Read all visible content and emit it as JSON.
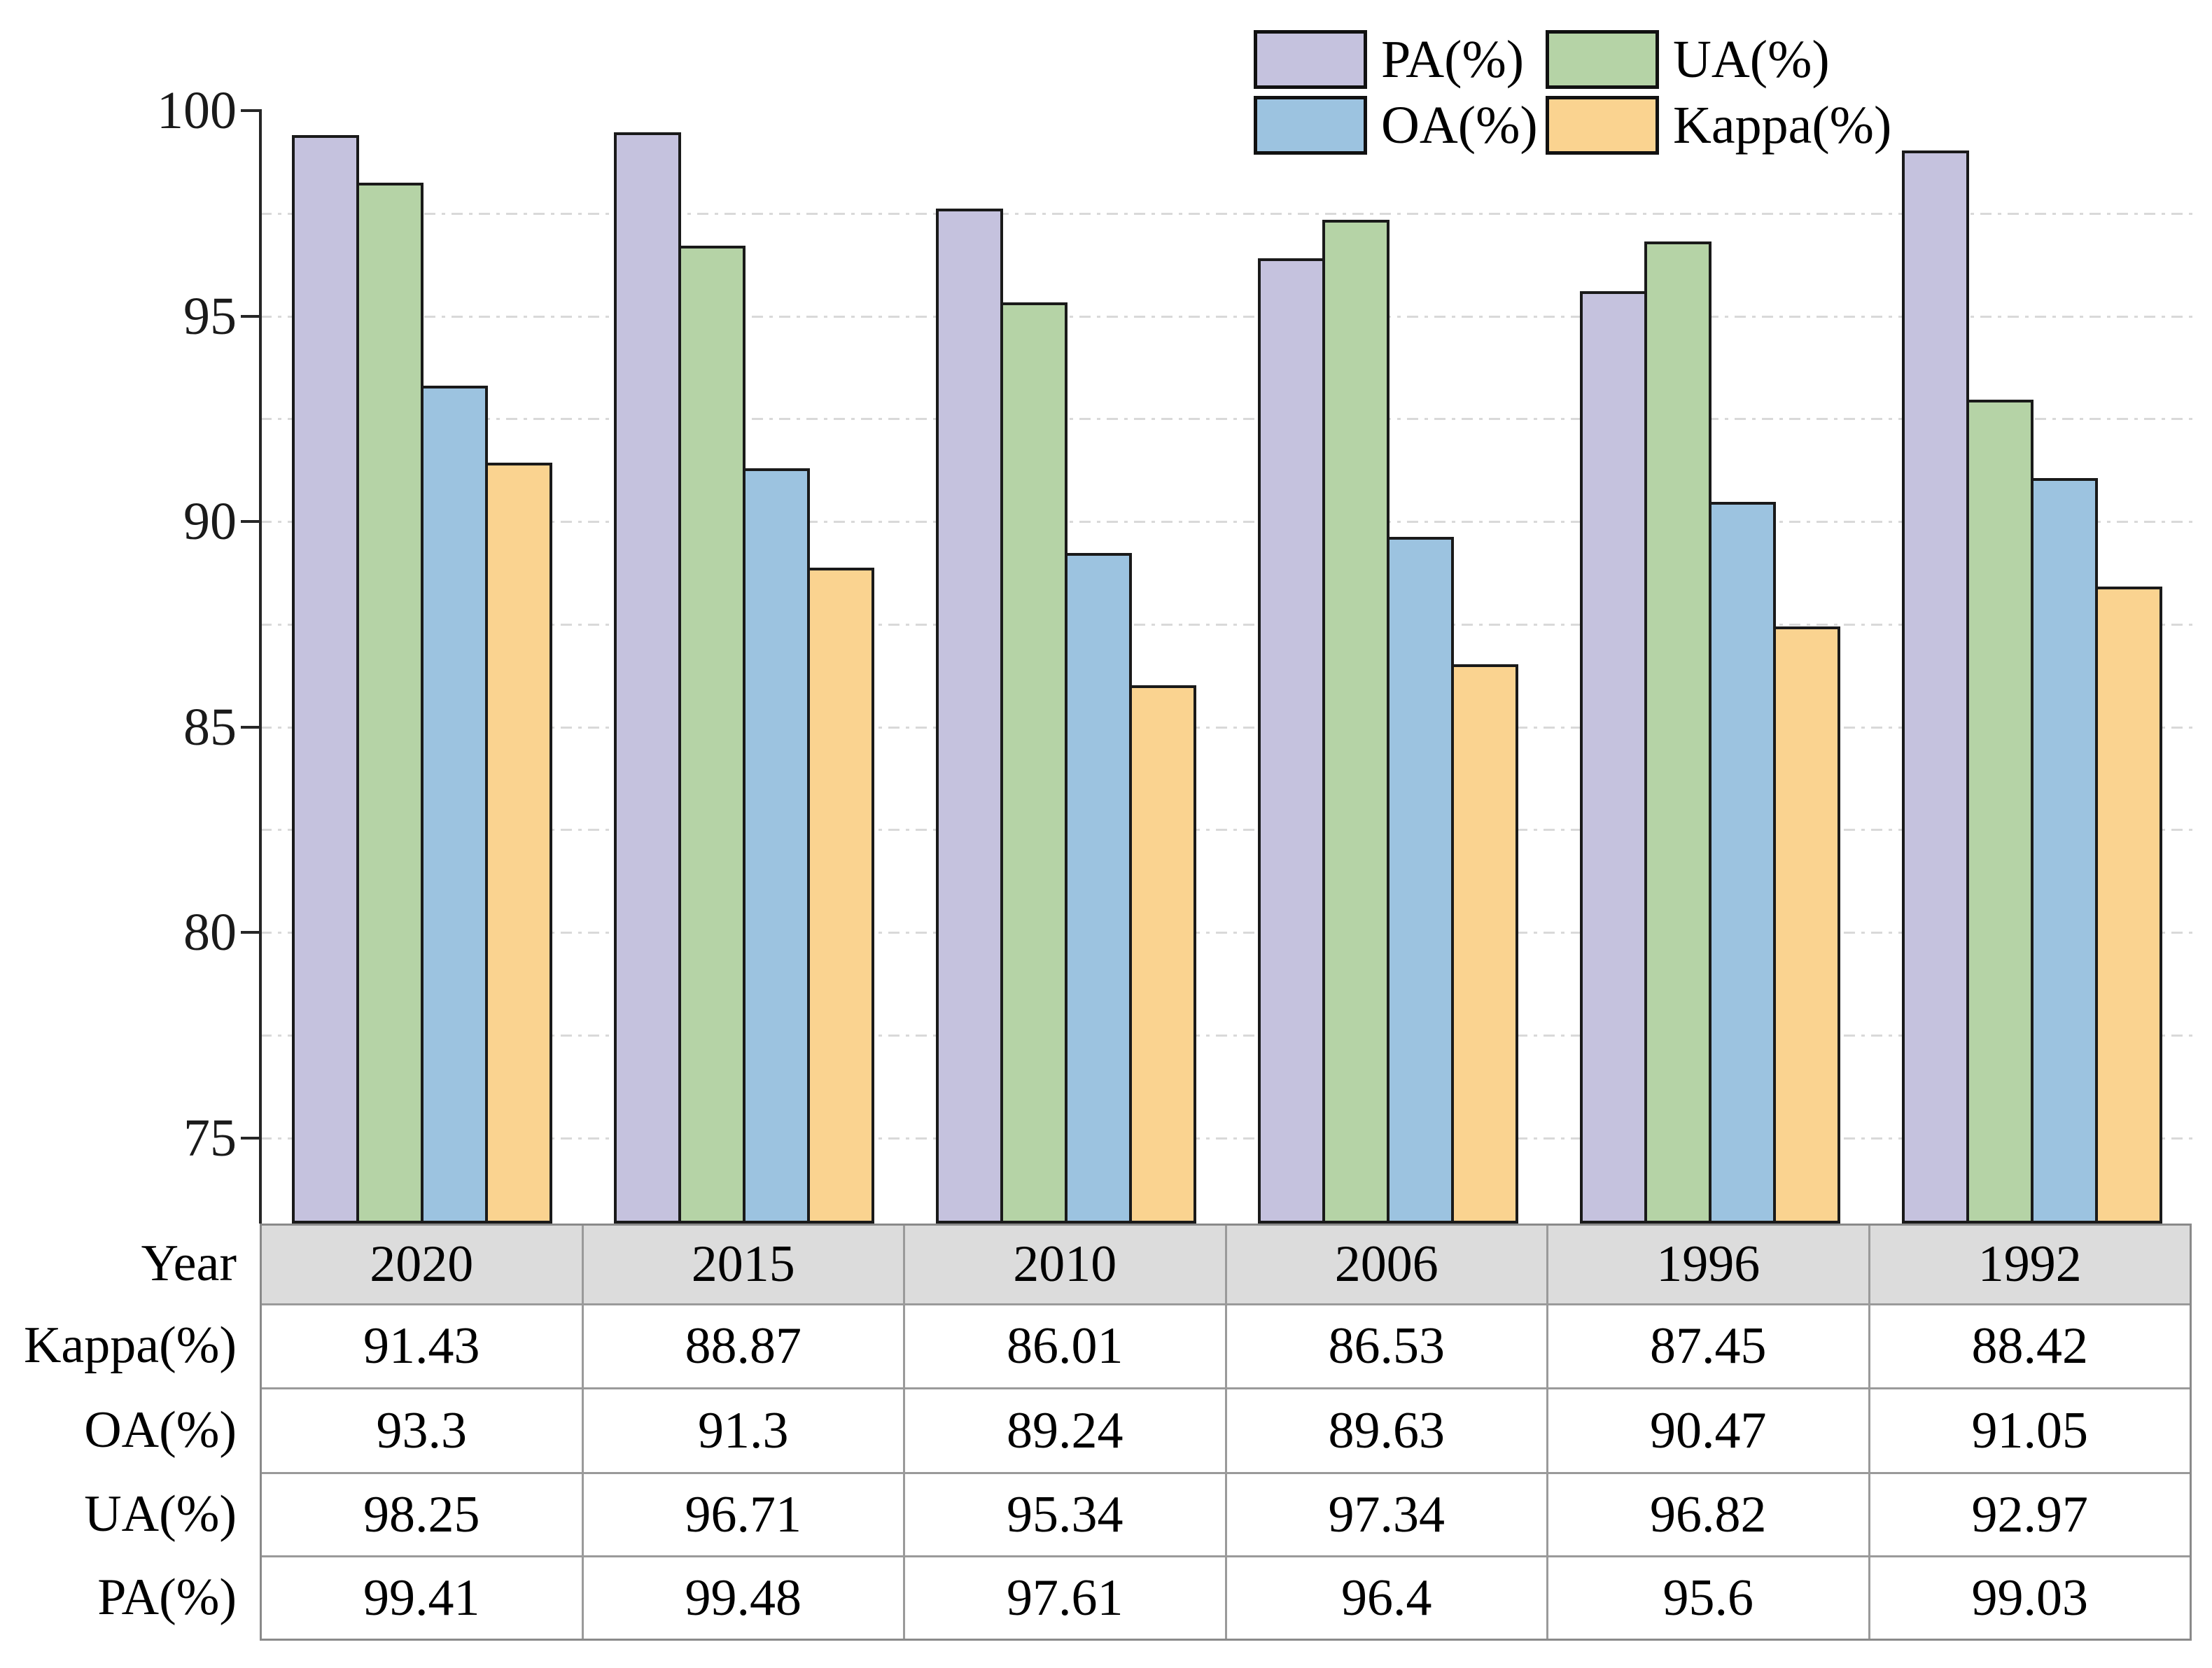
{
  "chart_data": {
    "type": "bar",
    "title": "",
    "xlabel": "",
    "ylabel": "",
    "categories": [
      "2020",
      "2015",
      "2010",
      "2006",
      "1996",
      "1992"
    ],
    "series": [
      {
        "name": "PA(%)",
        "color": "#c5c2de",
        "values": [
          99.41,
          99.48,
          97.61,
          96.4,
          95.6,
          99.03
        ]
      },
      {
        "name": "UA(%)",
        "color": "#b5d3a6",
        "values": [
          98.25,
          96.71,
          95.34,
          97.34,
          96.82,
          92.97
        ]
      },
      {
        "name": "OA(%)",
        "color": "#9cc3e0",
        "values": [
          93.3,
          91.3,
          89.24,
          89.63,
          90.47,
          91.05
        ]
      },
      {
        "name": "Kappa(%)",
        "color": "#fad390",
        "values": [
          91.43,
          88.87,
          86.01,
          86.53,
          87.45,
          88.42
        ]
      }
    ],
    "ylim": [
      72.9,
      100.1
    ],
    "yticks": [
      75,
      80,
      85,
      90,
      95,
      100
    ],
    "minor_gridline_interval": 2.5,
    "gridlines": "horizontal dashed light-gray at 2.5 unit steps from 75 to 97.5",
    "legend_position": "top-right, two columns, no frame",
    "legend_rows": [
      [
        "PA(%)",
        "UA(%)"
      ],
      [
        "OA(%)",
        "Kappa(%)"
      ]
    ],
    "bar_outline_color": "#1a1a1a",
    "axis_color": "#262626"
  },
  "table": {
    "row_header_label": "Year",
    "header_background": "#dcdcdc",
    "rows": [
      {
        "label": "Year",
        "values": [
          "2020",
          "2015",
          "2010",
          "2006",
          "1996",
          "1992"
        ]
      },
      {
        "label": "Kappa(%)",
        "values": [
          "91.43",
          "88.87",
          "86.01",
          "86.53",
          "87.45",
          "88.42"
        ]
      },
      {
        "label": "OA(%)",
        "values": [
          "93.3",
          "91.3",
          "89.24",
          "89.63",
          "90.47",
          "91.05"
        ]
      },
      {
        "label": "UA(%)",
        "values": [
          "98.25",
          "96.71",
          "95.34",
          "97.34",
          "96.82",
          "92.97"
        ]
      },
      {
        "label": "PA(%)",
        "values": [
          "99.41",
          "99.48",
          "97.61",
          "96.4",
          "95.6",
          "99.03"
        ]
      }
    ]
  },
  "colors": {
    "pa": "#c5c2de",
    "ua": "#b5d3a6",
    "oa": "#9cc3e0",
    "kappa": "#fad390",
    "grid": "#d9d9d9",
    "table_border": "#9a9a9a",
    "table_header_bg": "#dcdcdc",
    "background": "#ffffff"
  }
}
